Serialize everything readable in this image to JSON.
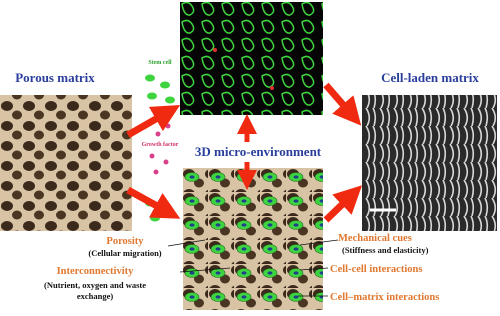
{
  "labels": {
    "porous_matrix": "Porous matrix",
    "stem_cell": "Stem cell",
    "growth_factor": "Growth factor",
    "micro_environment": "3D micro-environment",
    "cell_laden_matrix": "Cell-laden matrix",
    "porosity": "Porosity",
    "porosity_note": "(Cellular migration)",
    "interconnectivity": "Interconnectivity",
    "interconnectivity_note_1": "(Nutrient, oxygen and waste",
    "interconnectivity_note_2": "exchange)",
    "mechanical_cues": "Mechanical cues",
    "mechanical_cues_note": "(Stiffness and elasticity)",
    "cell_cell": "Cell-cell interactions",
    "cell_matrix": "Cell–matrix interactions"
  }
}
